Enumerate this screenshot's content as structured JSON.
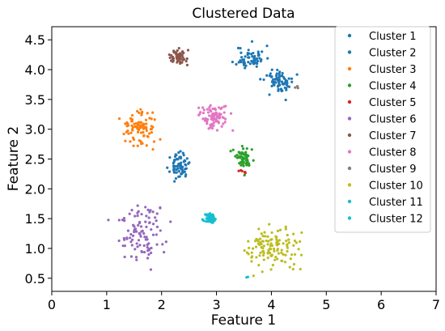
{
  "chart_data": {
    "type": "scatter",
    "title": "Clustered Data",
    "xlabel": "Feature 1",
    "ylabel": "Feature 2",
    "xlim": [
      0,
      7
    ],
    "ylim": [
      0.28,
      4.72
    ],
    "xticks": [
      "0",
      "1",
      "2",
      "3",
      "4",
      "5",
      "6",
      "7"
    ],
    "yticks": [
      "0.5",
      "1.0",
      "1.5",
      "2.0",
      "2.5",
      "3.0",
      "3.5",
      "4.0",
      "4.5"
    ],
    "legend_position": "top-right",
    "series": [
      {
        "name": "Cluster 1",
        "color": "#1f77b4",
        "center": [
          3.62,
          4.2
        ],
        "spread": [
          0.13,
          0.1
        ],
        "n": 60,
        "seed": 11
      },
      {
        "name": "Cluster 2",
        "color": "#1f77b4",
        "center": [
          4.17,
          3.8
        ],
        "spread": [
          0.14,
          0.1
        ],
        "n": 70,
        "seed": 12
      },
      {
        "name": "Cluster 3",
        "color": "#ff7f0e",
        "center": [
          1.6,
          3.02
        ],
        "spread": [
          0.16,
          0.15
        ],
        "n": 90,
        "seed": 13
      },
      {
        "name": "Cluster 4",
        "color": "#2ca02c",
        "center": [
          3.52,
          2.52
        ],
        "spread": [
          0.09,
          0.09
        ],
        "n": 60,
        "seed": 14
      },
      {
        "name": "Cluster 5",
        "color": "#d62728",
        "center": [
          3.5,
          2.29
        ],
        "spread": [
          0.03,
          0.02
        ],
        "n": 6,
        "seed": 15
      },
      {
        "name": "Cluster 6",
        "color": "#9467bd",
        "center": [
          1.65,
          1.25
        ],
        "spread": [
          0.2,
          0.24
        ],
        "n": 100,
        "seed": 16
      },
      {
        "name": "Cluster 7",
        "color": "#8c564b",
        "center": [
          2.3,
          4.2
        ],
        "spread": [
          0.07,
          0.06
        ],
        "n": 60,
        "seed": 17
      },
      {
        "name": "Cluster 8",
        "color": "#e377c2",
        "center": [
          2.95,
          3.2
        ],
        "spread": [
          0.12,
          0.11
        ],
        "n": 80,
        "seed": 18
      },
      {
        "name": "Cluster 9",
        "color": "#7f7f7f",
        "center": [
          4.45,
          3.7
        ],
        "spread": [
          0.02,
          0.02
        ],
        "n": 3,
        "seed": 19
      },
      {
        "name": "Cluster 10",
        "color": "#bcbd22",
        "center": [
          4.0,
          1.02
        ],
        "spread": [
          0.25,
          0.2
        ],
        "n": 120,
        "seed": 20
      },
      {
        "name": "Cluster 11",
        "color": "#17becf",
        "center": [
          2.9,
          1.5
        ],
        "spread": [
          0.05,
          0.04
        ],
        "n": 60,
        "seed": 21
      },
      {
        "name": "Cluster 12",
        "color": "#17becf",
        "center": [
          3.55,
          0.52
        ],
        "spread": [
          0.01,
          0.01
        ],
        "n": 2,
        "seed": 22
      },
      {
        "name": "",
        "color": "#1f77b4",
        "center": [
          2.32,
          2.38
        ],
        "spread": [
          0.08,
          0.1
        ],
        "n": 70,
        "seed": 23
      }
    ]
  }
}
